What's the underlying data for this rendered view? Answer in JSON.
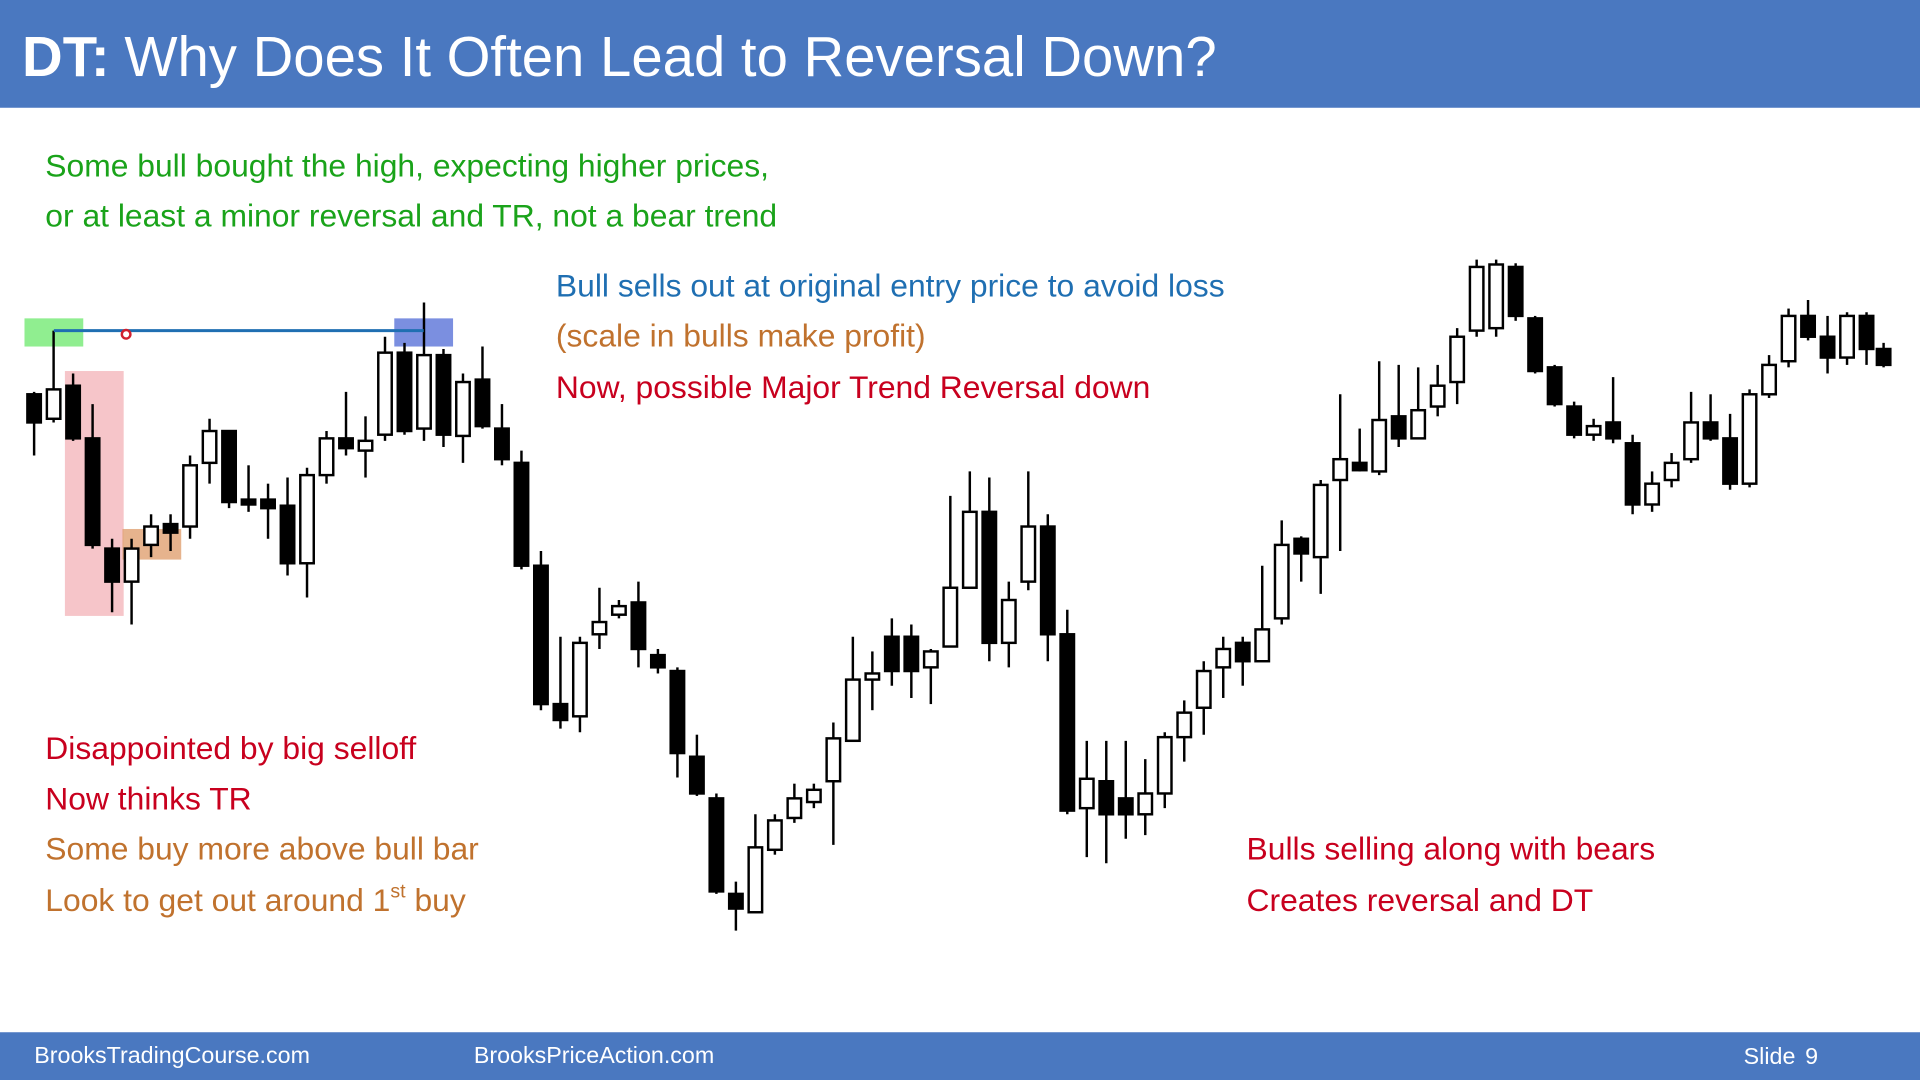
{
  "header": {
    "title_prefix": "DT:",
    "title": "Why Does It Often Lead to Reversal Down?"
  },
  "annotations": {
    "top_left": [
      "Some bull bought the high, expecting higher prices,",
      "or at least a minor reversal and TR, not a bear trend"
    ],
    "top_center": {
      "blue": "Bull sells out at original entry price to avoid loss",
      "orange": "(scale in bulls make profit)",
      "red": "Now, possible Major Trend Reversal down"
    },
    "bottom_left": {
      "red": [
        "Disappointed by big selloff",
        "Now thinks TR"
      ],
      "orange": [
        "Some buy more above bull bar",
        "Look to get out around 1"
      ],
      "superscript": "st",
      "tail": " buy"
    },
    "bottom_right": [
      "Bulls selling along with bears",
      "Creates reversal and DT"
    ]
  },
  "footer": {
    "left": "BrooksTradingCourse.com",
    "center": "BrooksPriceAction.com",
    "slide_label": "Slide",
    "slide_number": 9
  }
}
